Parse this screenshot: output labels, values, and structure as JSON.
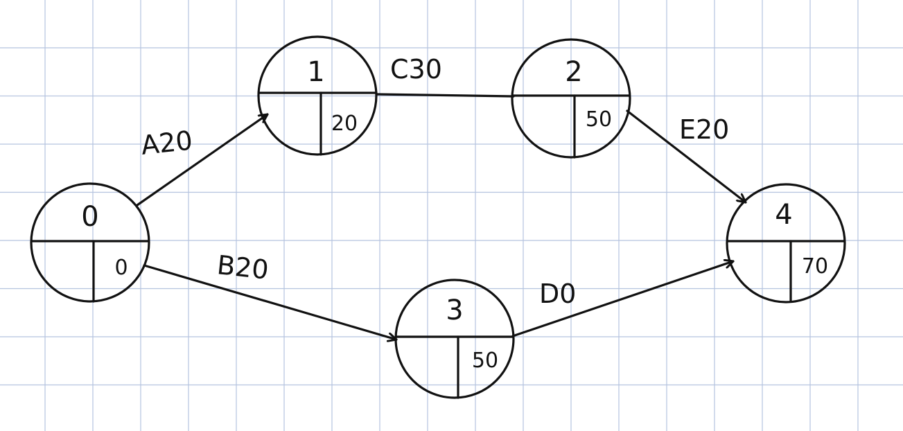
{
  "colors": {
    "grid": "#b5c3df",
    "ink": "#111111",
    "paper": "#ffffff"
  },
  "nodes": [
    {
      "id": "0",
      "value": "0"
    },
    {
      "id": "1",
      "value": "20"
    },
    {
      "id": "2",
      "value": "50"
    },
    {
      "id": "3",
      "value": "50"
    },
    {
      "id": "4",
      "value": "70"
    }
  ],
  "edges": [
    {
      "from": "0",
      "to": "1",
      "label": "A20"
    },
    {
      "from": "0",
      "to": "3",
      "label": "B20"
    },
    {
      "from": "1",
      "to": "2",
      "label": "C30"
    },
    {
      "from": "3",
      "to": "4",
      "label": "D0"
    },
    {
      "from": "2",
      "to": "4",
      "label": "E20"
    }
  ]
}
